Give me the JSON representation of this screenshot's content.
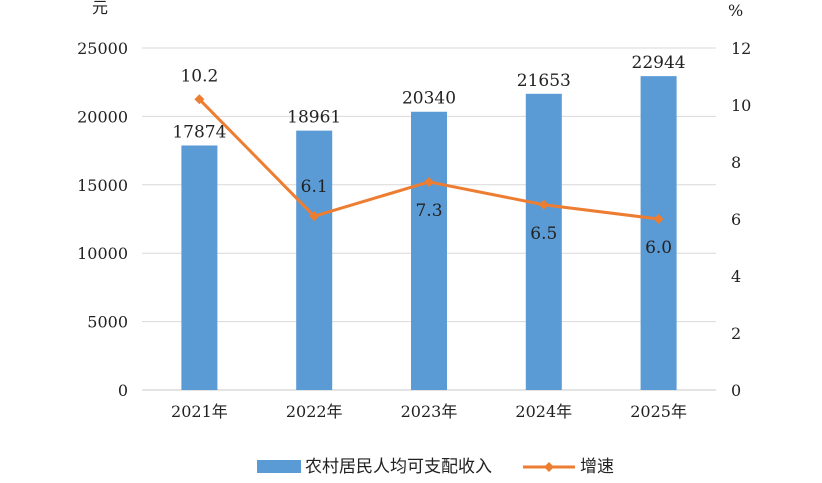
{
  "chart_data": {
    "type": "bar",
    "categories": [
      "2021年",
      "2022年",
      "2023年",
      "2024年",
      "2025年"
    ],
    "series": [
      {
        "name": "农村居民人均可支配收入",
        "type": "bar",
        "axis": "left",
        "color": "#5b9bd5",
        "values": [
          17874,
          18961,
          20340,
          21653,
          22944
        ],
        "labels": [
          "17874",
          "18961",
          "20340",
          "21653",
          "22944"
        ]
      },
      {
        "name": "增速",
        "type": "line",
        "axis": "right",
        "color": "#ed7d31",
        "values": [
          10.2,
          6.1,
          7.3,
          6.5,
          6.0
        ],
        "labels": [
          "10.2",
          "6.1",
          "7.3",
          "6.5",
          "6.0"
        ]
      }
    ],
    "y_left": {
      "unit": "元",
      "range": [
        0,
        25000
      ],
      "ticks": [
        "0",
        "5000",
        "10000",
        "15000",
        "20000",
        "25000"
      ]
    },
    "y_right": {
      "unit": "%",
      "range": [
        0,
        12
      ],
      "ticks": [
        "0",
        "2",
        "4",
        "6",
        "8",
        "10",
        "12"
      ]
    },
    "grid": true,
    "legend_position": "bottom"
  }
}
